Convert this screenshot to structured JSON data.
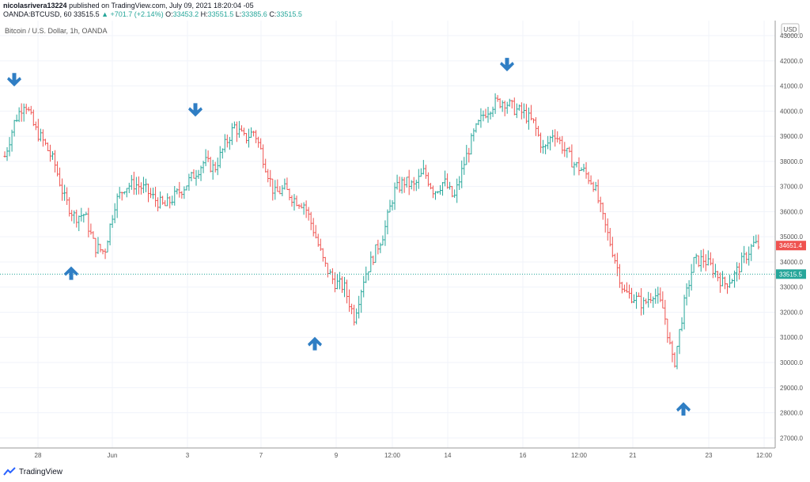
{
  "header": {
    "user": "nicolasrivera13224",
    "published": "published on TradingView.com, July 09, 2021 18:20:04 -05",
    "symbol": "OANDA:BTCUSD, 60",
    "last": "33515.5",
    "change": "▲ +701.7 (+2.14%)",
    "o_label": "O:",
    "o_value": "33453.2",
    "h_label": "H:",
    "h_value": "33551.5",
    "l_label": "L:",
    "l_value": "33385.6",
    "c_label": "C:",
    "c_value": "33515.5"
  },
  "pair_title": "Bitcoin / U.S. Dollar, 1h, OANDA",
  "currency": "USD",
  "price_tags": [
    {
      "value": 34651.4,
      "text": "34651.4",
      "color": "#ef5350"
    },
    {
      "value": 33515.5,
      "text": "33515.5",
      "color": "#26a69a"
    }
  ],
  "footer": {
    "brand": "TradingView"
  },
  "colors": {
    "up": "#26a69a",
    "down": "#ef5350",
    "arrow": "#2f7ec4"
  },
  "chart_data": {
    "type": "ohlc",
    "title": "Bitcoin / U.S. Dollar, 1h, OANDA",
    "y_range": [
      26600,
      43600
    ],
    "y_ticks": [
      27000,
      28000,
      29000,
      30000,
      31000,
      32000,
      33000,
      34000,
      35000,
      36000,
      37000,
      38000,
      39000,
      40000,
      41000,
      42000,
      43000
    ],
    "x_ticks": [
      "28",
      "Jun",
      "3",
      "7",
      "9",
      "12:00",
      "14",
      "16",
      "12:00",
      "21",
      "23",
      "12:00"
    ],
    "current_price_line": 33515.5,
    "price_path": [
      [
        0,
        38200
      ],
      [
        2,
        39600
      ],
      [
        4,
        40400
      ],
      [
        6,
        39300
      ],
      [
        8,
        38700
      ],
      [
        10,
        37900
      ],
      [
        12,
        36500
      ],
      [
        14,
        35800
      ],
      [
        16,
        35900
      ],
      [
        18,
        34600
      ],
      [
        20,
        34400
      ],
      [
        22,
        36300
      ],
      [
        24,
        37000
      ],
      [
        26,
        37100
      ],
      [
        28,
        36900
      ],
      [
        30,
        36500
      ],
      [
        32,
        36200
      ],
      [
        34,
        36600
      ],
      [
        36,
        37000
      ],
      [
        38,
        37500
      ],
      [
        40,
        38000
      ],
      [
        42,
        37700
      ],
      [
        44,
        38600
      ],
      [
        46,
        39400
      ],
      [
        48,
        38900
      ],
      [
        50,
        39200
      ],
      [
        52,
        38000
      ],
      [
        54,
        36700
      ],
      [
        56,
        36900
      ],
      [
        58,
        36500
      ],
      [
        60,
        36300
      ],
      [
        62,
        35200
      ],
      [
        64,
        33900
      ],
      [
        66,
        33200
      ],
      [
        68,
        33000
      ],
      [
        70,
        31800
      ],
      [
        72,
        33400
      ],
      [
        74,
        34300
      ],
      [
        76,
        35200
      ],
      [
        78,
        36800
      ],
      [
        80,
        37200
      ],
      [
        82,
        37000
      ],
      [
        84,
        37600
      ],
      [
        86,
        36800
      ],
      [
        88,
        37200
      ],
      [
        90,
        36500
      ],
      [
        92,
        37900
      ],
      [
        94,
        39100
      ],
      [
        96,
        39900
      ],
      [
        98,
        40300
      ],
      [
        100,
        40400
      ],
      [
        102,
        40100
      ],
      [
        104,
        39900
      ],
      [
        106,
        39500
      ],
      [
        108,
        38400
      ],
      [
        110,
        39200
      ],
      [
        112,
        38500
      ],
      [
        114,
        37900
      ],
      [
        116,
        37600
      ],
      [
        118,
        37100
      ],
      [
        120,
        35600
      ],
      [
        122,
        34300
      ],
      [
        124,
        32800
      ],
      [
        126,
        32600
      ],
      [
        128,
        32300
      ],
      [
        130,
        32800
      ],
      [
        132,
        32100
      ],
      [
        134,
        29800
      ],
      [
        136,
        32200
      ],
      [
        138,
        34000
      ],
      [
        140,
        34100
      ],
      [
        142,
        33700
      ],
      [
        144,
        33100
      ],
      [
        146,
        33400
      ],
      [
        148,
        34100
      ],
      [
        150,
        34700
      ],
      [
        151,
        34651
      ]
    ],
    "annotations": [
      {
        "type": "arrow-down",
        "x_bar": 2,
        "price": 41200
      },
      {
        "type": "arrow-up",
        "x_bar": 19,
        "price": 33600
      },
      {
        "type": "arrow-down",
        "x_bar": 47,
        "price": 40000
      },
      {
        "type": "arrow-up",
        "x_bar": 70,
        "price": 30800
      },
      {
        "type": "arrow-down",
        "x_bar": 125,
        "price": 41800
      },
      {
        "type": "arrow-up",
        "x_bar": 168,
        "price": 28200
      }
    ]
  }
}
